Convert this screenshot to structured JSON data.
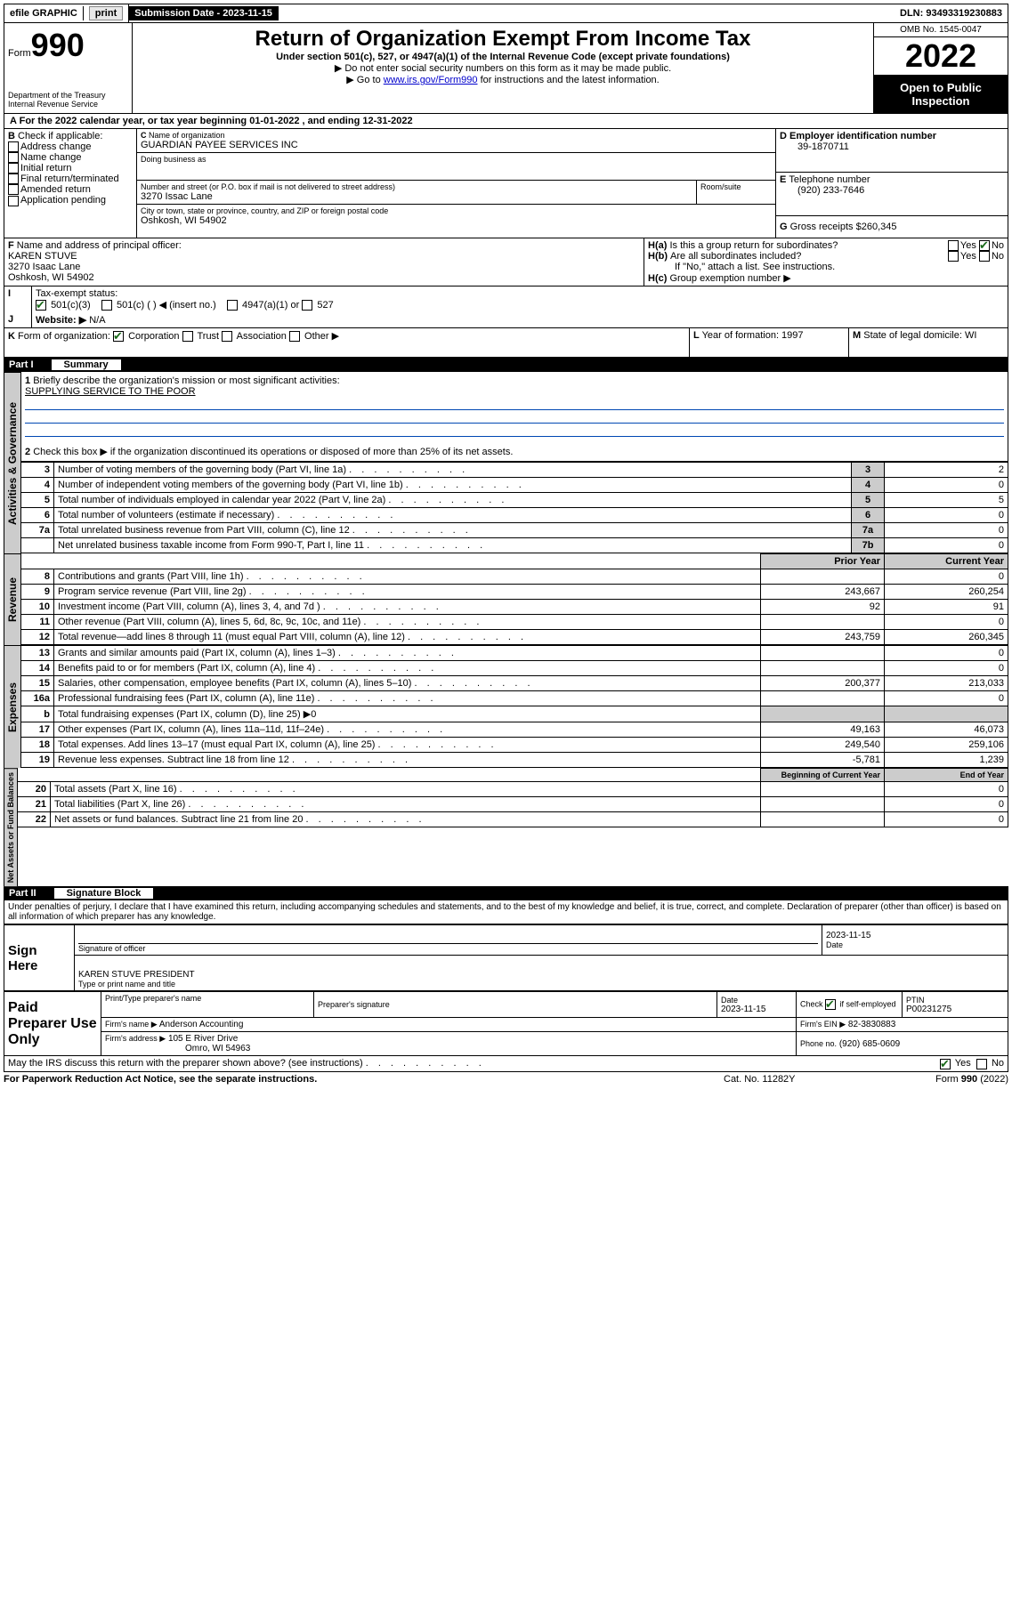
{
  "top": {
    "efile_label": "efile GRAPHIC",
    "print_btn": "print",
    "sub_label": "Submission Date - 2023-11-15",
    "dln": "DLN: 93493319230883"
  },
  "header": {
    "form_word": "Form",
    "form_no": "990",
    "dept": "Department of the Treasury",
    "irs": "Internal Revenue Service",
    "title": "Return of Organization Exempt From Income Tax",
    "subtitle": "Under section 501(c), 527, or 4947(a)(1) of the Internal Revenue Code (except private foundations)",
    "note1": "▶ Do not enter social security numbers on this form as it may be made public.",
    "note2_pre": "▶ Go to ",
    "note2_link": "www.irs.gov/Form990",
    "note2_post": " for instructions and the latest information.",
    "omb": "OMB No. 1545-0047",
    "year": "2022",
    "open": "Open to Public Inspection"
  },
  "A": {
    "text": "For the 2022 calendar year, or tax year beginning 01-01-2022    , and ending 12-31-2022"
  },
  "B": {
    "label": "Check if applicable:",
    "opts": [
      "Address change",
      "Name change",
      "Initial return",
      "Final return/terminated",
      "Amended return",
      "Application pending"
    ]
  },
  "C": {
    "name_label": "Name of organization",
    "name": "GUARDIAN PAYEE SERVICES INC",
    "dba_label": "Doing business as",
    "street_label": "Number and street (or P.O. box if mail is not delivered to street address)",
    "room_label": "Room/suite",
    "street": "3270 Issac Lane",
    "city_label": "City or town, state or province, country, and ZIP or foreign postal code",
    "city": "Oshkosh, WI  54902"
  },
  "D": {
    "label": "Employer identification number",
    "ein": "39-1870711"
  },
  "E": {
    "label": "Telephone number",
    "phone": "(920) 233-7646"
  },
  "G": {
    "label": "Gross receipts $",
    "val": "260,345"
  },
  "F": {
    "label": "Name and address of principal officer:",
    "name": "KAREN STUVE",
    "street": "3270 Isaac Lane",
    "city": "Oshkosh, WI  54902"
  },
  "H": {
    "a": "Is this a group return for subordinates?",
    "b": "Are all subordinates included?",
    "note": "If \"No,\" attach a list. See instructions.",
    "c": "Group exemption number ▶",
    "yes": "Yes",
    "no": "No"
  },
  "I": {
    "label": "Tax-exempt status:",
    "o1": "501(c)(3)",
    "o2": "501(c) (  ) ◀ (insert no.)",
    "o3": "4947(a)(1) or",
    "o4": "527"
  },
  "J": {
    "label": "Website: ▶",
    "val": "N/A"
  },
  "K": {
    "label": "Form of organization:",
    "o1": "Corporation",
    "o2": "Trust",
    "o3": "Association",
    "o4": "Other ▶"
  },
  "L": {
    "label": "Year of formation: 1997"
  },
  "M": {
    "label": "State of legal domicile: WI"
  },
  "part1": {
    "bar": "Part I",
    "title": "Summary",
    "q1": "Briefly describe the organization's mission or most significant activities:",
    "mission": "SUPPLYING SERVICE TO THE POOR",
    "q2": "Check this box ▶        if the organization discontinued its operations or disposed of more than 25% of its net assets.",
    "lines": [
      {
        "n": "3",
        "t": "Number of voting members of the governing body (Part VI, line 1a)",
        "rn": "3",
        "v": "2"
      },
      {
        "n": "4",
        "t": "Number of independent voting members of the governing body (Part VI, line 1b)",
        "rn": "4",
        "v": "0"
      },
      {
        "n": "5",
        "t": "Total number of individuals employed in calendar year 2022 (Part V, line 2a)",
        "rn": "5",
        "v": "5"
      },
      {
        "n": "6",
        "t": "Total number of volunteers (estimate if necessary)",
        "rn": "6",
        "v": "0"
      },
      {
        "n": "7a",
        "t": "Total unrelated business revenue from Part VIII, column (C), line 12",
        "rn": "7a",
        "v": "0"
      },
      {
        "n": "",
        "t": "Net unrelated business taxable income from Form 990-T, Part I, line 11",
        "rn": "7b",
        "v": "0"
      }
    ],
    "prior_hdr": "Prior Year",
    "curr_hdr": "Current Year",
    "rev_rows": [
      {
        "n": "8",
        "t": "Contributions and grants (Part VIII, line 1h)",
        "p": "",
        "c": "0"
      },
      {
        "n": "9",
        "t": "Program service revenue (Part VIII, line 2g)",
        "p": "243,667",
        "c": "260,254"
      },
      {
        "n": "10",
        "t": "Investment income (Part VIII, column (A), lines 3, 4, and 7d )",
        "p": "92",
        "c": "91"
      },
      {
        "n": "11",
        "t": "Other revenue (Part VIII, column (A), lines 5, 6d, 8c, 9c, 10c, and 11e)",
        "p": "",
        "c": "0"
      },
      {
        "n": "12",
        "t": "Total revenue—add lines 8 through 11 (must equal Part VIII, column (A), line 12)",
        "p": "243,759",
        "c": "260,345"
      }
    ],
    "exp_rows": [
      {
        "n": "13",
        "t": "Grants and similar amounts paid (Part IX, column (A), lines 1–3)",
        "p": "",
        "c": "0"
      },
      {
        "n": "14",
        "t": "Benefits paid to or for members (Part IX, column (A), line 4)",
        "p": "",
        "c": "0"
      },
      {
        "n": "15",
        "t": "Salaries, other compensation, employee benefits (Part IX, column (A), lines 5–10)",
        "p": "200,377",
        "c": "213,033"
      },
      {
        "n": "16a",
        "t": "Professional fundraising fees (Part IX, column (A), line 11e)",
        "p": "",
        "c": "0"
      },
      {
        "n": "b",
        "t": "Total fundraising expenses (Part IX, column (D), line 25) ▶0",
        "p": null,
        "c": null
      },
      {
        "n": "17",
        "t": "Other expenses (Part IX, column (A), lines 11a–11d, 11f–24e)",
        "p": "49,163",
        "c": "46,073"
      },
      {
        "n": "18",
        "t": "Total expenses. Add lines 13–17 (must equal Part IX, column (A), line 25)",
        "p": "249,540",
        "c": "259,106"
      },
      {
        "n": "19",
        "t": "Revenue less expenses. Subtract line 18 from line 12",
        "p": "-5,781",
        "c": "1,239"
      }
    ],
    "na_hdr1": "Beginning of Current Year",
    "na_hdr2": "End of Year",
    "na_rows": [
      {
        "n": "20",
        "t": "Total assets (Part X, line 16)",
        "p": "",
        "c": "0"
      },
      {
        "n": "21",
        "t": "Total liabilities (Part X, line 26)",
        "p": "",
        "c": "0"
      },
      {
        "n": "22",
        "t": "Net assets or fund balances. Subtract line 21 from line 20",
        "p": "",
        "c": "0"
      }
    ],
    "tab_ag": "Activities & Governance",
    "tab_rev": "Revenue",
    "tab_exp": "Expenses",
    "tab_na": "Net Assets or Fund Balances"
  },
  "part2": {
    "bar": "Part II",
    "title": "Signature Block",
    "decl": "Under penalties of perjury, I declare that I have examined this return, including accompanying schedules and statements, and to the best of my knowledge and belief, it is true, correct, and complete. Declaration of preparer (other than officer) is based on all information of which preparer has any knowledge.",
    "sign_here": "Sign Here",
    "sig_officer": "Signature of officer",
    "date": "Date",
    "sig_date": "2023-11-15",
    "officer_name": "KAREN STUVE PRESIDENT",
    "type_name": "Type or print name and title",
    "paid": "Paid Preparer Use Only",
    "pt_name": "Print/Type preparer's name",
    "pt_sig": "Preparer's signature",
    "pt_date": "Date",
    "pt_date_v": "2023-11-15",
    "pt_check": "Check        if self-employed",
    "ptin_l": "PTIN",
    "ptin": "P00231275",
    "firm_name_l": "Firm's name    ▶",
    "firm_name": "Anderson Accounting",
    "firm_ein_l": "Firm's EIN ▶",
    "firm_ein": "82-3830883",
    "firm_addr_l": "Firm's address ▶",
    "firm_addr": "105 E River Drive",
    "firm_city": "Omro, WI  54963",
    "firm_phone_l": "Phone no.",
    "firm_phone": "(920) 685-0609",
    "discuss": "May the IRS discuss this return with the preparer shown above? (see instructions)"
  },
  "footer": {
    "left": "For Paperwork Reduction Act Notice, see the separate instructions.",
    "mid": "Cat. No. 11282Y",
    "right": "Form 990 (2022)"
  }
}
